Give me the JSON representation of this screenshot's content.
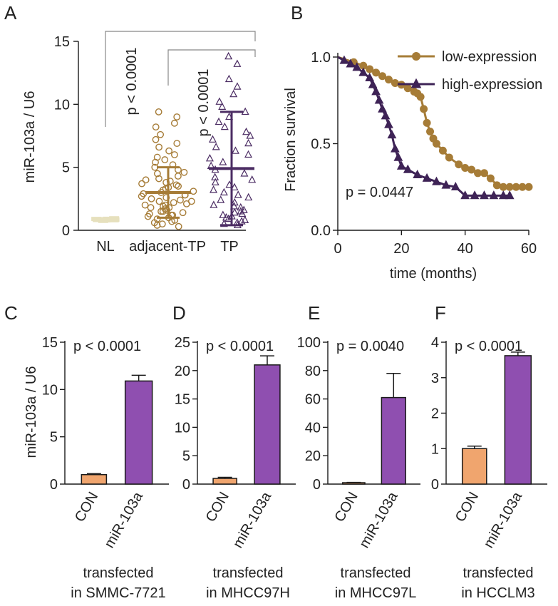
{
  "colors": {
    "nl": "#e6e0bd",
    "adjacent": "#a67c37",
    "tp": "#4b2c63",
    "low_curve": "#a67c37",
    "high_curve": "#3e2356",
    "con_bar": "#f0a56e",
    "mir_bar": "#8f4fb0",
    "axis": "#1a1a1a"
  },
  "chart_data": [
    {
      "panel": "A",
      "type": "scatter",
      "ylabel": "miR-103a / U6",
      "ylim": [
        0,
        15
      ],
      "yticks": [
        0,
        5,
        10,
        15
      ],
      "categories": [
        "NL",
        "adjacent-TP",
        "TP"
      ],
      "groups": [
        {
          "category": "NL",
          "mean": 0.85,
          "sd_low": 0.75,
          "sd_high": 0.95,
          "marker": "band",
          "values": [
            0.8,
            0.85,
            0.9,
            0.75,
            0.95,
            0.82,
            0.88,
            0.79,
            0.91,
            0.86
          ]
        },
        {
          "category": "adjacent-TP",
          "mean": 3.0,
          "sd_low": 1.0,
          "sd_high": 5.0,
          "marker": "circle",
          "values": [
            9.4,
            9.0,
            8.5,
            8.2,
            7.6,
            7.2,
            6.9,
            6.6,
            6.3,
            6.0,
            5.8,
            5.6,
            5.4,
            5.2,
            5.0,
            4.8,
            4.6,
            4.5,
            4.3,
            4.1,
            4.0,
            3.9,
            3.8,
            3.7,
            3.6,
            3.5,
            3.4,
            3.3,
            3.2,
            3.1,
            3.0,
            2.9,
            2.8,
            2.8,
            2.7,
            2.6,
            2.5,
            2.4,
            2.3,
            2.3,
            2.2,
            2.1,
            2.0,
            2.0,
            1.9,
            1.8,
            1.8,
            1.7,
            1.6,
            1.5,
            1.5,
            1.4,
            1.3,
            1.2,
            1.2,
            1.1,
            1.0,
            0.9,
            0.8,
            0.7,
            0.6,
            0.5,
            0.4,
            0.3
          ]
        },
        {
          "category": "TP",
          "mean": 4.9,
          "sd_low": 0.4,
          "sd_high": 9.4,
          "marker": "triangle",
          "values": [
            13.8,
            13.2,
            12.0,
            11.4,
            10.8,
            10.2,
            9.8,
            9.4,
            9.0,
            8.6,
            8.2,
            7.8,
            7.5,
            7.2,
            6.9,
            6.6,
            6.3,
            6.0,
            5.7,
            5.4,
            5.1,
            4.8,
            4.5,
            4.2,
            4.0,
            3.8,
            3.6,
            3.4,
            3.2,
            3.0,
            2.8,
            2.6,
            2.4,
            2.2,
            2.0,
            1.9,
            1.8,
            1.6,
            1.5,
            1.4,
            1.3,
            1.2,
            1.1,
            1.0,
            0.9,
            0.8,
            0.7,
            0.6,
            0.5,
            0.4
          ]
        }
      ],
      "annotations": [
        "p < 0.0001",
        "p < 0.0001"
      ]
    },
    {
      "panel": "B",
      "type": "line",
      "xlabel": "time (months)",
      "ylabel": "Fraction survival",
      "xlim": [
        0,
        60
      ],
      "ylim": [
        0,
        1.0
      ],
      "xticks": [
        0,
        20,
        40,
        60
      ],
      "yticks": [
        "0.0",
        "0.5",
        "1.0"
      ],
      "legend_position": "top-right",
      "series": [
        {
          "name": "low-expression",
          "marker": "circle",
          "x": [
            0,
            5,
            8,
            10,
            12,
            14,
            16,
            18,
            20,
            22,
            24,
            25,
            26,
            27,
            28,
            29,
            30,
            31,
            33,
            35,
            38,
            40,
            42,
            44,
            46,
            48,
            50,
            52,
            54,
            56,
            58,
            60
          ],
          "y": [
            1.0,
            0.97,
            0.95,
            0.93,
            0.91,
            0.89,
            0.87,
            0.85,
            0.84,
            0.82,
            0.8,
            0.79,
            0.77,
            0.7,
            0.62,
            0.57,
            0.53,
            0.5,
            0.46,
            0.42,
            0.38,
            0.36,
            0.35,
            0.33,
            0.33,
            0.3,
            0.26,
            0.25,
            0.25,
            0.25,
            0.25,
            0.25
          ]
        },
        {
          "name": "high-expression",
          "marker": "triangle",
          "x": [
            0,
            2,
            4,
            6,
            8,
            10,
            11,
            12,
            13,
            14,
            15,
            16,
            17,
            18,
            19,
            20,
            22,
            25,
            28,
            31,
            34,
            37,
            40,
            43,
            46,
            49,
            52,
            54
          ],
          "y": [
            1.0,
            0.98,
            0.96,
            0.94,
            0.91,
            0.88,
            0.84,
            0.8,
            0.75,
            0.7,
            0.66,
            0.61,
            0.55,
            0.47,
            0.42,
            0.37,
            0.35,
            0.32,
            0.3,
            0.28,
            0.26,
            0.25,
            0.2,
            0.2,
            0.2,
            0.2,
            0.2,
            0.2
          ]
        }
      ],
      "annotations": [
        "p = 0.0447"
      ]
    },
    {
      "panel": "C",
      "type": "bar",
      "categories": [
        "CON",
        "miR-103a"
      ],
      "values": [
        1.0,
        10.9
      ],
      "errors": [
        0.1,
        0.6
      ],
      "ylabel": "miR-103a / U6",
      "ylim": [
        0,
        15
      ],
      "yticks": [
        0,
        5,
        10,
        15
      ],
      "annotation": "p < 0.0001",
      "caption": [
        "transfected",
        "in SMMC-7721"
      ]
    },
    {
      "panel": "D",
      "type": "bar",
      "categories": [
        "CON",
        "miR-103a"
      ],
      "values": [
        1.0,
        21.0
      ],
      "errors": [
        0.2,
        1.6
      ],
      "ylabel": "",
      "ylim": [
        0,
        25
      ],
      "yticks": [
        0,
        5,
        10,
        15,
        20,
        25
      ],
      "annotation": "p < 0.0001",
      "caption": [
        "transfected",
        "in MHCC97H"
      ]
    },
    {
      "panel": "E",
      "type": "bar",
      "categories": [
        "CON",
        "miR-103a"
      ],
      "values": [
        1.0,
        61.0
      ],
      "errors": [
        0.2,
        17.0
      ],
      "ylabel": "",
      "ylim": [
        0,
        100
      ],
      "yticks": [
        0,
        20,
        40,
        60,
        80,
        100
      ],
      "annotation": "p = 0.0040",
      "caption": [
        "transfected",
        "in MHCC97L"
      ]
    },
    {
      "panel": "F",
      "type": "bar",
      "categories": [
        "CON",
        "miR-103a"
      ],
      "values": [
        1.0,
        3.62
      ],
      "errors": [
        0.07,
        0.1
      ],
      "ylabel": "",
      "ylim": [
        0,
        4
      ],
      "yticks": [
        0,
        1,
        2,
        3,
        4
      ],
      "annotation": "p < 0.0001",
      "caption": [
        "transfected",
        "in HCCLM3"
      ]
    }
  ]
}
